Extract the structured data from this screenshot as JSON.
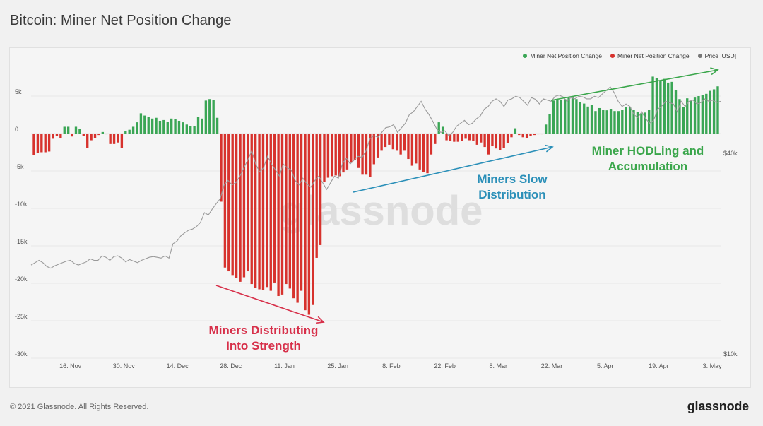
{
  "header": {
    "title": "Bitcoin: Miner Net Position Change"
  },
  "footer": {
    "copyright": "© 2021 Glassnode. All Rights Reserved.",
    "brand": "glassnode"
  },
  "watermark": "glassnode",
  "colors": {
    "positive": "#3aa655",
    "negative": "#d7322d",
    "price": "#9a9a9a",
    "arrow_red": "#d7304a",
    "arrow_blue": "#2a8fb8",
    "arrow_green": "#3aa64b"
  },
  "chart_data": {
    "type": "bar",
    "title": "Bitcoin: Miner Net Position Change",
    "legend": [
      {
        "name": "Miner Net Position Change",
        "color": "#3aa655"
      },
      {
        "name": "Miner Net Position Change",
        "color": "#d7322d"
      },
      {
        "name": "Price [USD]",
        "color": "#777777"
      }
    ],
    "legend_position": "top-right",
    "y_left": {
      "ticks": [
        "5k",
        "0",
        "-5k",
        "-10k",
        "-15k",
        "-20k",
        "-25k",
        "-30k"
      ],
      "tick_values": [
        5000,
        0,
        -5000,
        -10000,
        -15000,
        -20000,
        -25000,
        -30000
      ],
      "range": [
        -30000,
        10000
      ]
    },
    "y_right": {
      "ticks": [
        "$40k",
        "$10k"
      ],
      "scale": "log"
    },
    "x_ticks": [
      "16. Nov",
      "30. Nov",
      "14. Dec",
      "28. Dec",
      "11. Jan",
      "25. Jan",
      "8. Feb",
      "22. Feb",
      "8. Mar",
      "22. Mar",
      "5. Apr",
      "19. Apr",
      "3. May"
    ],
    "x_tick_index": [
      4,
      18,
      32,
      46,
      60,
      74,
      88,
      102,
      116,
      130,
      144,
      158,
      172
    ],
    "values": [
      -2900,
      -2600,
      -2500,
      -2500,
      -2400,
      -700,
      -300,
      -600,
      900,
      900,
      -400,
      900,
      600,
      -300,
      -1900,
      -900,
      -600,
      -200,
      200,
      -100,
      -1400,
      -1400,
      -1200,
      -1900,
      300,
      500,
      900,
      1500,
      2700,
      2400,
      2200,
      2000,
      2100,
      1700,
      1800,
      1600,
      2000,
      1900,
      1700,
      1500,
      1200,
      1000,
      1000,
      2200,
      2000,
      4400,
      4600,
      4500,
      2100,
      -9100,
      -17900,
      -18400,
      -18900,
      -19300,
      -19800,
      -19200,
      -18400,
      -20100,
      -20600,
      -20800,
      -20900,
      -20500,
      -21000,
      -19900,
      -21700,
      -21500,
      -20100,
      -20700,
      -22000,
      -22600,
      -21000,
      -23600,
      -24200,
      -22900,
      -16600,
      -14900,
      -6500,
      -5900,
      -5700,
      -5600,
      -5700,
      -5200,
      -4800,
      -3900,
      -3500,
      -4600,
      -5500,
      -5500,
      -5800,
      -4100,
      -3200,
      -2300,
      -1800,
      -1500,
      -2100,
      -2300,
      -2800,
      -2300,
      -3400,
      -4300,
      -4000,
      -4800,
      -5100,
      -5300,
      -2800,
      -1400,
      1500,
      900,
      -900,
      -1000,
      -1100,
      -1100,
      -1000,
      -700,
      -900,
      -1000,
      -1500,
      -1200,
      -1800,
      -2800,
      -1700,
      -2000,
      -2200,
      -1900,
      -1300,
      -500,
      700,
      -200,
      -500,
      -600,
      -300,
      -200,
      -100,
      -100,
      1200,
      2600,
      4400,
      4500,
      4500,
      4600,
      4800,
      4800,
      4600,
      4200,
      4000,
      3600,
      3800,
      3000,
      3400,
      3200,
      3100,
      3300,
      3000,
      3000,
      3200,
      3500,
      3500,
      3200,
      2900,
      2700,
      2800,
      3200,
      7600,
      7400,
      7000,
      7300,
      6800,
      6900,
      5800,
      4600,
      3500,
      4700,
      4400,
      4800,
      5000,
      5100,
      5300,
      5700,
      5900,
      6300
    ],
    "price": [
      18400,
      18700,
      19000,
      18700,
      18200,
      18000,
      18300,
      18500,
      18700,
      18900,
      19000,
      18600,
      18400,
      18600,
      18800,
      19200,
      19000,
      19000,
      19600,
      19400,
      19000,
      19500,
      19600,
      19300,
      18800,
      19100,
      18900,
      18700,
      19000,
      19200,
      19400,
      19500,
      19400,
      19300,
      19600,
      19300,
      21300,
      21700,
      22500,
      23000,
      23400,
      23600,
      24000,
      24700,
      26400,
      26000,
      27100,
      28100,
      29100,
      32100,
      33000,
      32000,
      32500,
      34000,
      36000,
      38000,
      40500,
      37000,
      35000,
      36000,
      39000,
      37000,
      35500,
      34000,
      37000,
      36000,
      35500,
      33000,
      32000,
      33500,
      32200,
      31500,
      33000,
      34000,
      32500,
      31000,
      32500,
      34000,
      33500,
      37000,
      38500,
      37000,
      38000,
      39000,
      38700,
      40500,
      44000,
      45000,
      44500,
      46000,
      47500,
      47800,
      48500,
      46000,
      47500,
      49000,
      52000,
      53000,
      55000,
      57000,
      54000,
      52000,
      49500,
      47000,
      46000,
      46500,
      45000,
      46000,
      48000,
      49000,
      50000,
      48500,
      49000,
      50500,
      51500,
      54000,
      55000,
      57000,
      58000,
      57000,
      55000,
      57500,
      58000,
      59000,
      58500,
      57000,
      55500,
      58500,
      57800,
      56000,
      58000,
      57500,
      57000,
      59000,
      59500,
      58800,
      57000,
      58500,
      58000,
      59000,
      58800,
      58000,
      58000,
      59000,
      58500,
      60000,
      61500,
      63000,
      60500,
      57000,
      55000,
      56000,
      55000,
      52000,
      51000,
      53000,
      50500,
      49000,
      50000,
      54000,
      55000,
      57000,
      56500,
      56000,
      53000,
      57000,
      55000,
      57000,
      57500,
      56000,
      56500,
      58000,
      57000,
      57500,
      56500,
      57000
    ]
  },
  "annotations": {
    "distributing": "Miners Distributing\nInto Strength",
    "slow": "Miners Slow\nDistribution",
    "hodling": "Miner HODLing and\nAccumulation"
  }
}
